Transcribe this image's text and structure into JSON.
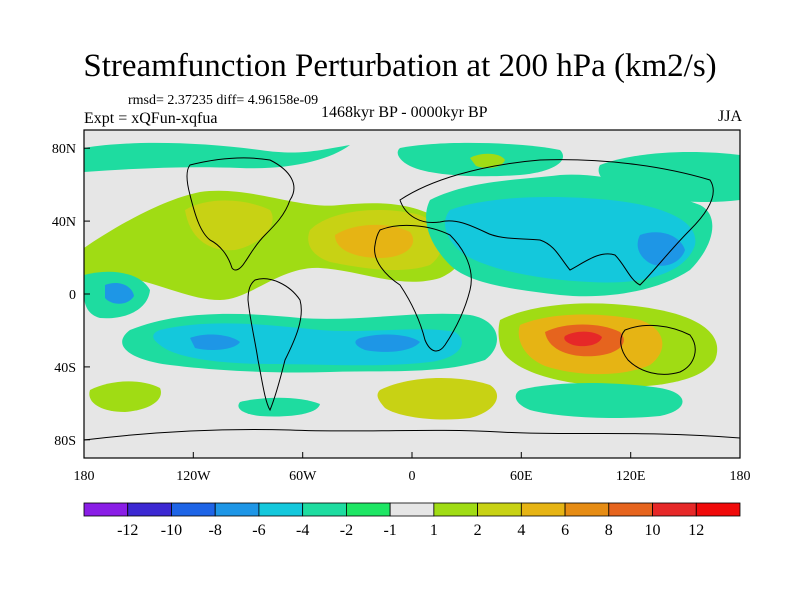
{
  "title": "Streamfunction Perturbation at 200 hPa (km2/s)",
  "stats": "rmsd= 2.37235 diff= 4.96158e-09",
  "experiment": "Expt = xQFun-xqfua",
  "period": "1468kyr BP - 0000kyr BP",
  "season": "JJA",
  "lon_ticks": [
    "180",
    "120W",
    "60W",
    "0",
    "60E",
    "120E",
    "180"
  ],
  "lat_ticks": [
    "80N",
    "40N",
    "0",
    "40S",
    "80S"
  ],
  "colorbar": {
    "levels": [
      "-12",
      "-10",
      "-8",
      "-6",
      "-4",
      "-2",
      "-1",
      "1",
      "2",
      "4",
      "6",
      "8",
      "10",
      "12"
    ],
    "colors": [
      "#8a1ee6",
      "#3c28d2",
      "#1e64e6",
      "#1e96e6",
      "#14c8dc",
      "#1edca0",
      "#1ee664",
      "#e6e6e6",
      "#a0dc14",
      "#c8d214",
      "#e6b414",
      "#e68c14",
      "#e6641e",
      "#e62828",
      "#f00a0a"
    ]
  },
  "chart_data": {
    "type": "heatmap",
    "title": "Streamfunction Perturbation at 200 hPa (km2/s)",
    "projection": "cylindrical equidistant",
    "lon_range": [
      -180,
      180
    ],
    "lat_range": [
      -90,
      90
    ],
    "units": "km2/s",
    "features": [
      {
        "lon": -100,
        "lat": 35,
        "value": 4
      },
      {
        "lon": -30,
        "lat": 30,
        "value": 5
      },
      {
        "lon": 80,
        "lat": 30,
        "value": -6
      },
      {
        "lon": 90,
        "lat": -25,
        "value": 11
      },
      {
        "lon": -10,
        "lat": -27,
        "value": -7
      },
      {
        "lon": -100,
        "lat": -25,
        "value": -6
      },
      {
        "lon": 20,
        "lat": -48,
        "value": 3
      },
      {
        "lon": 160,
        "lat": 65,
        "value": -3
      },
      {
        "lon": -110,
        "lat": 65,
        "value": -2
      },
      {
        "lon": -160,
        "lat": 5,
        "value": -4
      }
    ]
  }
}
